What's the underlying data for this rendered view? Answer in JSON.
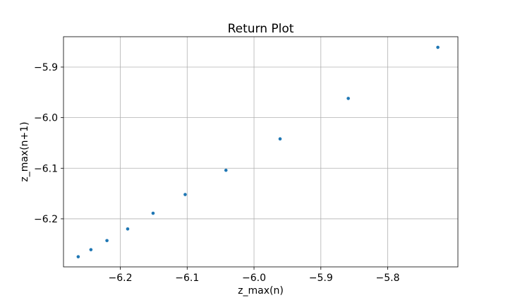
{
  "chart_data": {
    "type": "scatter",
    "title": "Return Plot",
    "xlabel": "z_max(n)",
    "ylabel": "z_max(n+1)",
    "xlim": [
      -6.285,
      -5.695
    ],
    "ylim": [
      -6.295,
      -5.84
    ],
    "xticks": [
      -6.2,
      -6.1,
      -6.0,
      -5.9,
      -5.8
    ],
    "xtick_labels": [
      "−6.2",
      "−6.1",
      "−6.0",
      "−5.9",
      "−5.8"
    ],
    "yticks": [
      -5.9,
      -6.0,
      -6.1,
      -6.2
    ],
    "ytick_labels": [
      "−5.9",
      "−6.0",
      "−6.1",
      "−6.2"
    ],
    "grid": true,
    "marker_color": "#1f77b4",
    "points": [
      {
        "x": -6.263,
        "y": -6.275
      },
      {
        "x": -6.244,
        "y": -6.261
      },
      {
        "x": -6.22,
        "y": -6.243
      },
      {
        "x": -6.189,
        "y": -6.22
      },
      {
        "x": -6.151,
        "y": -6.189
      },
      {
        "x": -6.103,
        "y": -6.152
      },
      {
        "x": -6.042,
        "y": -6.104
      },
      {
        "x": -5.961,
        "y": -6.042
      },
      {
        "x": -5.859,
        "y": -5.962
      },
      {
        "x": -5.725,
        "y": -5.861
      }
    ]
  }
}
